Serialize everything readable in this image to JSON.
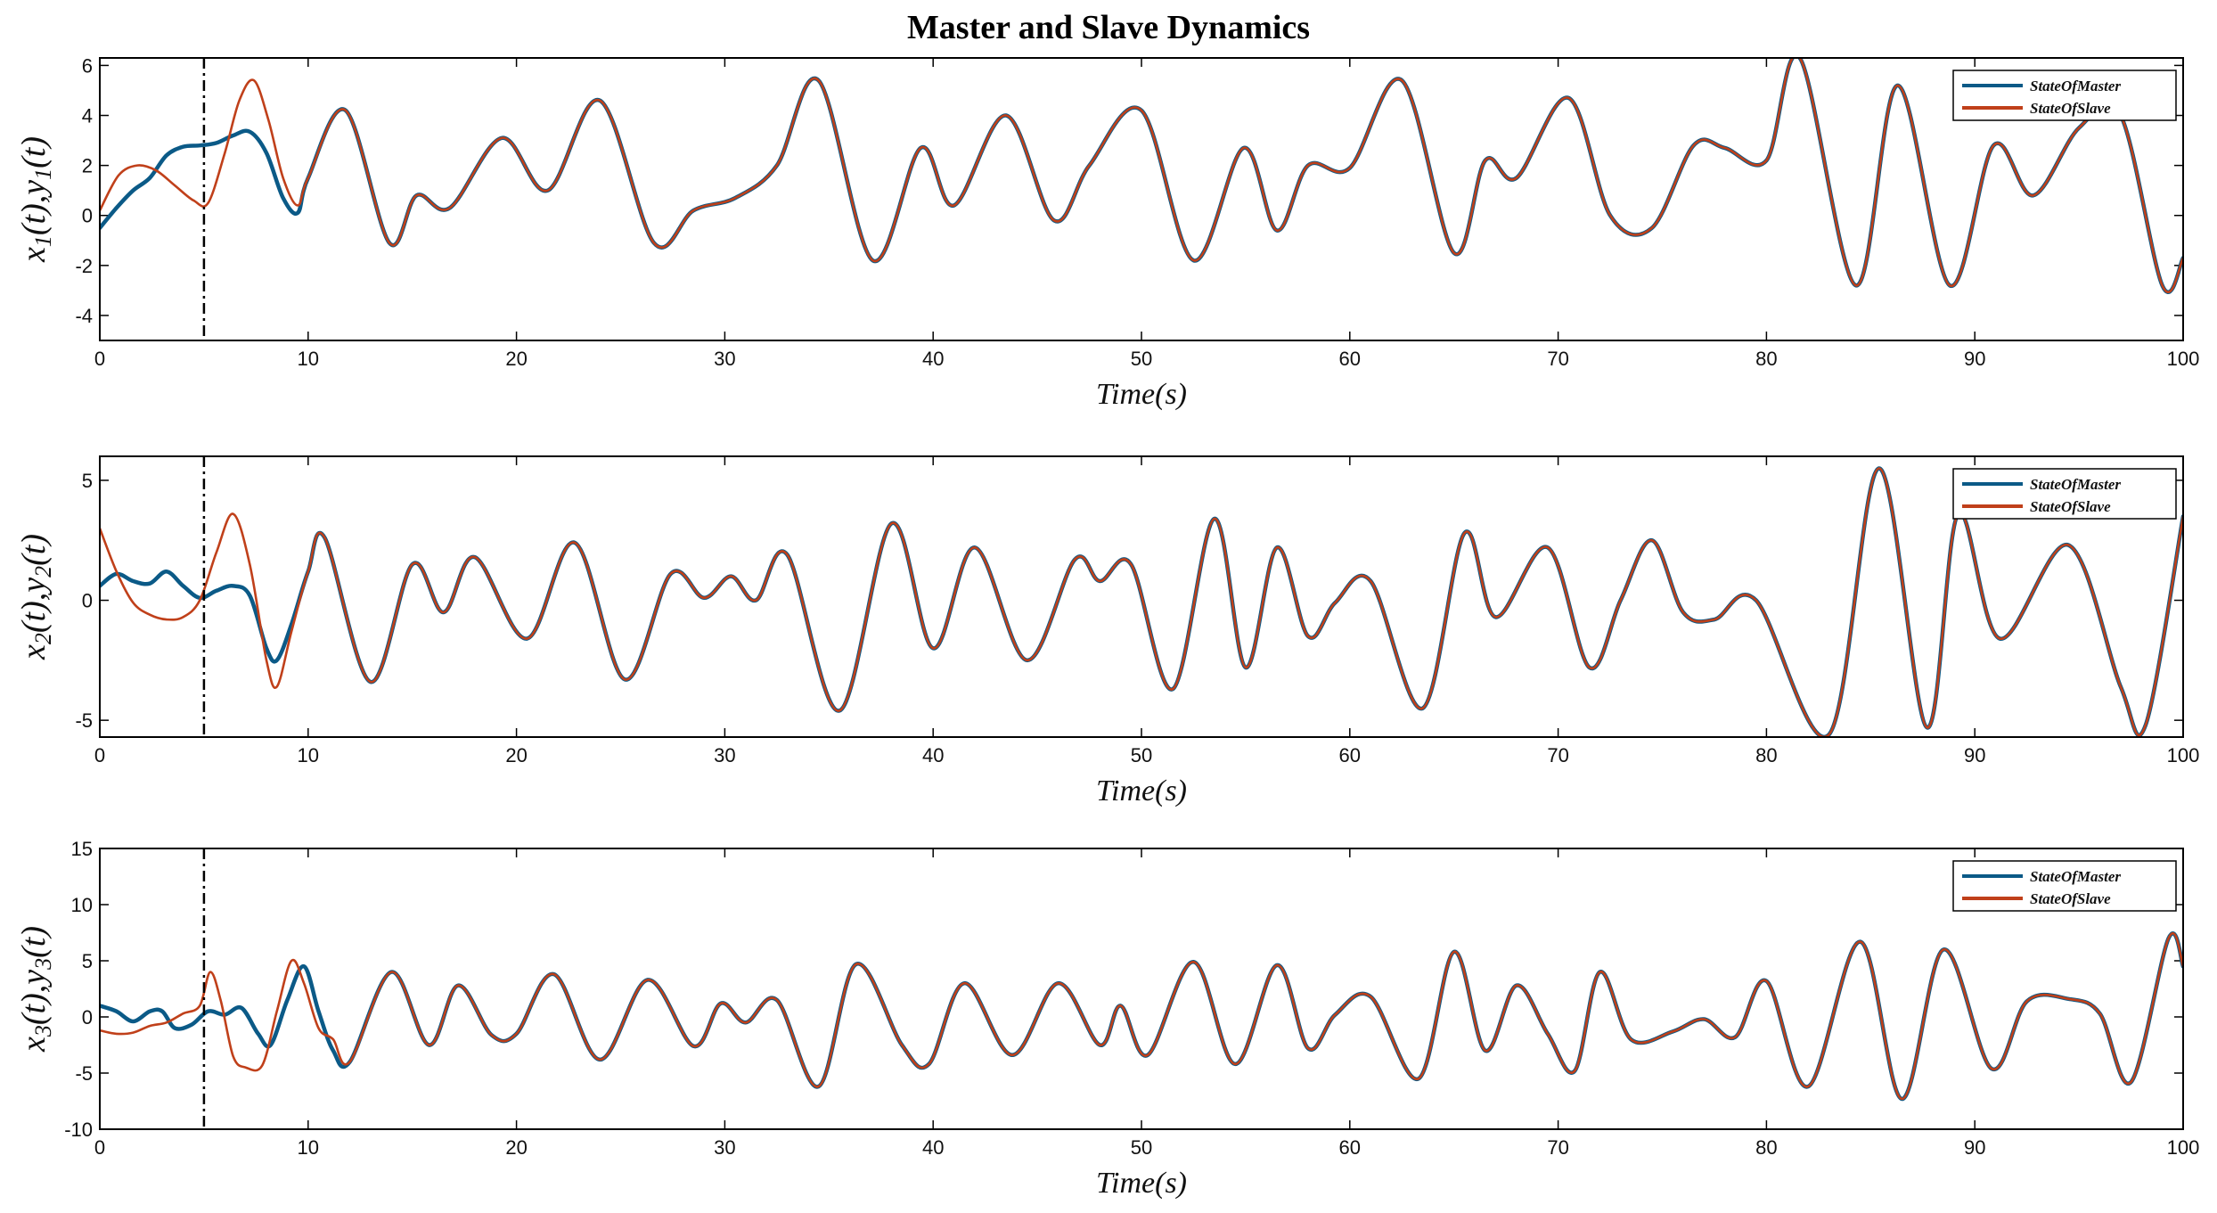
{
  "chart_data": {
    "type": "line",
    "title": "Master and Slave Dynamics",
    "colors": {
      "master": "#0b5a87",
      "slave": "#c0401a",
      "marker": "#000000"
    },
    "marker_time": 5,
    "panels": [
      {
        "id": "p1",
        "xlabel": "Time(s)",
        "ylabel": "x1(t),y1(t)",
        "ylabel_parts": [
          [
            "x",
            "1"
          ],
          [
            "(t),y",
            "1"
          ],
          [
            "(t)",
            ""
          ]
        ],
        "xlim": [
          0,
          100
        ],
        "ylim": [
          -5,
          6.3
        ],
        "xticks": [
          0,
          10,
          20,
          30,
          40,
          50,
          60,
          70,
          80,
          90,
          100
        ],
        "yticks": [
          -4,
          -2,
          0,
          2,
          4,
          6
        ],
        "legend": "top-right",
        "series": [
          {
            "name": "StateOfMaster",
            "x": [
              0,
              0.8,
              1.6,
              2.4,
              3.2,
              4.0,
              4.8,
              5.6,
              6.4,
              7.2,
              8.0,
              8.8,
              9.5
            ],
            "y": [
              -0.5,
              0.3,
              1.0,
              1.5,
              2.4,
              2.75,
              2.8,
              2.9,
              3.2,
              3.35,
              2.5,
              0.7,
              0.1
            ]
          },
          {
            "name": "StateOfSlave",
            "x": [
              0,
              0.9,
              1.8,
              2.7,
              3.6,
              4.5,
              5.2,
              6.0,
              6.7,
              7.4,
              8.1,
              8.8,
              9.5
            ],
            "y": [
              0.2,
              1.6,
              2.0,
              1.8,
              1.2,
              0.6,
              0.5,
              2.5,
              4.6,
              5.4,
              3.8,
              1.5,
              0.4
            ]
          }
        ],
        "shared": {
          "x": [
            10,
            11.8,
            13.9,
            15.2,
            16.8,
            19.3,
            21.5,
            24.0,
            26.6,
            28.5,
            30.5,
            32.5,
            34.5,
            37.1,
            39.4,
            41.0,
            43.5,
            45.8,
            47.5,
            50.0,
            52.5,
            54.9,
            56.5,
            58.0,
            60.0,
            62.5,
            65.0,
            66.5,
            68.0,
            70.5,
            72.5,
            74.5,
            76.5,
            78.0,
            80.0,
            81.6,
            84.3,
            86.3,
            88.8,
            90.9,
            92.8,
            95.0,
            97.0,
            99.0,
            100
          ],
          "y": [
            1.5,
            4.2,
            -1.1,
            0.8,
            0.3,
            3.1,
            1.0,
            4.6,
            -1.1,
            0.2,
            0.7,
            2.0,
            5.4,
            -1.8,
            2.7,
            0.4,
            4.0,
            -0.2,
            2.0,
            4.2,
            -1.8,
            2.7,
            -0.6,
            2.0,
            1.9,
            5.4,
            -1.5,
            2.2,
            1.5,
            4.7,
            0.0,
            -0.5,
            2.8,
            2.7,
            2.2,
            6.3,
            -2.8,
            5.2,
            -2.8,
            2.8,
            0.8,
            3.5,
            4.0,
            -2.8,
            -1.7
          ]
        }
      },
      {
        "id": "p2",
        "xlabel": "Time(s)",
        "ylabel": "x2(t),y2(t)",
        "ylabel_parts": [
          [
            "x",
            "2"
          ],
          [
            "(t),y",
            "2"
          ],
          [
            "(t)",
            ""
          ]
        ],
        "xlim": [
          0,
          100
        ],
        "ylim": [
          -5.7,
          6
        ],
        "xticks": [
          0,
          10,
          20,
          30,
          40,
          50,
          60,
          70,
          80,
          90,
          100
        ],
        "yticks": [
          -5,
          0,
          5
        ],
        "legend": "top-right",
        "series": [
          {
            "name": "StateOfMaster",
            "x": [
              0,
              0.8,
              1.6,
              2.4,
              3.2,
              4.0,
              4.8,
              5.6,
              6.4,
              7.2,
              8.0,
              8.5,
              9.2,
              10.0
            ],
            "y": [
              0.6,
              1.1,
              0.8,
              0.7,
              1.2,
              0.6,
              0.1,
              0.4,
              0.6,
              0.2,
              -2.0,
              -2.5,
              -1.0,
              1.2
            ]
          },
          {
            "name": "StateOfSlave",
            "x": [
              0,
              0.8,
              1.6,
              2.4,
              3.2,
              4.0,
              4.8,
              5.6,
              6.4,
              7.2,
              8.0,
              8.5,
              9.2,
              10.0
            ],
            "y": [
              3.0,
              1.2,
              -0.1,
              -0.6,
              -0.8,
              -0.7,
              0.0,
              2.0,
              3.6,
              1.5,
              -2.5,
              -3.6,
              -1.3,
              1.2
            ]
          }
        ],
        "shared": {
          "x": [
            10.8,
            13.0,
            15.0,
            16.5,
            18.0,
            20.5,
            22.8,
            25.2,
            27.4,
            29.0,
            30.3,
            31.5,
            33.0,
            35.5,
            38.0,
            40.0,
            42.0,
            44.5,
            46.8,
            48.0,
            49.5,
            51.5,
            53.5,
            55.0,
            56.5,
            58.0,
            59.3,
            61.0,
            63.5,
            65.5,
            67.0,
            69.5,
            71.5,
            73.0,
            74.5,
            76.0,
            77.5,
            79.5,
            83.0,
            85.4,
            87.7,
            89.2,
            91.2,
            94.5,
            97.0,
            98.2,
            100
          ],
          "y": [
            2.6,
            -3.4,
            1.5,
            -0.5,
            1.8,
            -1.6,
            2.4,
            -3.3,
            1.1,
            0.1,
            1.0,
            0.0,
            1.9,
            -4.6,
            3.2,
            -2.0,
            2.2,
            -2.5,
            1.7,
            0.8,
            1.5,
            -3.7,
            3.4,
            -2.8,
            2.2,
            -1.5,
            -0.1,
            0.8,
            -4.5,
            2.8,
            -0.7,
            2.2,
            -2.8,
            0.0,
            2.5,
            -0.5,
            -0.8,
            0.0,
            -5.6,
            5.5,
            -5.3,
            3.6,
            -1.6,
            2.3,
            -3.6,
            -5.2,
            3.5
          ]
        }
      },
      {
        "id": "p3",
        "xlabel": "Time(s)",
        "ylabel": "x3(t),y3(t)",
        "ylabel_parts": [
          [
            "x",
            "3"
          ],
          [
            "(t),y",
            "3"
          ],
          [
            "(t)",
            ""
          ]
        ],
        "xlim": [
          0,
          100
        ],
        "ylim": [
          -10,
          15
        ],
        "xticks": [
          0,
          10,
          20,
          30,
          40,
          50,
          60,
          70,
          80,
          90,
          100
        ],
        "yticks": [
          -10,
          -5,
          0,
          5,
          10,
          15
        ],
        "legend": "top-right",
        "series": [
          {
            "name": "StateOfMaster",
            "x": [
              0,
              0.8,
              1.6,
              2.4,
              3.0,
              3.6,
              4.4,
              5.2,
              6.0,
              6.8,
              7.6,
              8.2,
              9.0,
              9.8,
              10.5,
              11.2
            ],
            "y": [
              1.0,
              0.5,
              -0.4,
              0.5,
              0.5,
              -1.0,
              -0.7,
              0.5,
              0.2,
              0.8,
              -1.5,
              -2.5,
              1.5,
              4.5,
              0.5,
              -3.0
            ]
          },
          {
            "name": "StateOfSlave",
            "x": [
              0,
              0.8,
              1.6,
              2.4,
              3.2,
              4.0,
              4.8,
              5.3,
              5.8,
              6.4,
              7.0,
              7.8,
              8.5,
              9.2,
              9.8,
              10.5,
              11.2
            ],
            "y": [
              -1.2,
              -1.5,
              -1.4,
              -0.8,
              -0.5,
              0.3,
              1.0,
              4.0,
              1.5,
              -3.5,
              -4.5,
              -4.3,
              0.5,
              5.0,
              3.0,
              -1.0,
              -2.0
            ]
          }
        ],
        "shared": {
          "x": [
            12.0,
            14.0,
            15.8,
            17.2,
            18.8,
            20.0,
            21.8,
            24.0,
            26.3,
            28.5,
            29.8,
            31.0,
            32.5,
            34.5,
            36.3,
            38.5,
            39.8,
            41.5,
            43.8,
            46.0,
            48.0,
            49.0,
            50.3,
            52.5,
            54.5,
            56.5,
            58.0,
            59.3,
            61.0,
            63.3,
            65.0,
            66.5,
            68.0,
            69.5,
            70.8,
            72.0,
            73.5,
            75.5,
            77.0,
            78.5,
            80.0,
            82.0,
            84.5,
            86.5,
            88.5,
            90.8,
            92.5,
            94.5,
            96.0,
            97.5,
            99.3,
            100
          ],
          "y": [
            -4.0,
            4.0,
            -2.5,
            2.8,
            -1.6,
            -1.5,
            3.8,
            -3.8,
            3.3,
            -2.6,
            1.2,
            -0.5,
            1.5,
            -6.2,
            4.7,
            -2.5,
            -4.2,
            3.0,
            -3.4,
            3.0,
            -2.5,
            1.0,
            -3.4,
            4.9,
            -4.2,
            4.6,
            -2.8,
            0.2,
            1.8,
            -5.5,
            5.8,
            -3.0,
            2.8,
            -1.5,
            -4.8,
            4.0,
            -2.0,
            -1.3,
            -0.2,
            -1.8,
            3.2,
            -6.2,
            6.7,
            -7.3,
            6.0,
            -4.6,
            1.4,
            1.6,
            0.3,
            -5.8,
            7.0,
            4.5
          ]
        }
      }
    ]
  }
}
